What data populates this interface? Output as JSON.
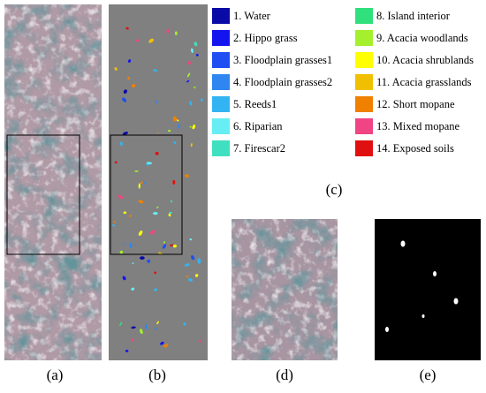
{
  "legend": [
    {
      "label": "1. Water",
      "color": "#0a0aa6"
    },
    {
      "label": "2. Hippo grass",
      "color": "#1414ee"
    },
    {
      "label": "3. Floodplain grasses1",
      "color": "#1f4ff2"
    },
    {
      "label": "4. Floodplain grasses2",
      "color": "#2f86f0"
    },
    {
      "label": "5. Reeds1",
      "color": "#33b4f2"
    },
    {
      "label": "6. Riparian",
      "color": "#66eef4"
    },
    {
      "label": "7. Firescar2",
      "color": "#3fe0c0"
    },
    {
      "label": "8. Island interior",
      "color": "#2fe07c"
    },
    {
      "label": "9. Acacia woodlands",
      "color": "#a4f02c"
    },
    {
      "label": "10. Acacia shrublands",
      "color": "#ffff00"
    },
    {
      "label": "11. Acacia grasslands",
      "color": "#f0c000"
    },
    {
      "label": "12. Short mopane",
      "color": "#f08000"
    },
    {
      "label": "13. Mixed mopane",
      "color": "#f04484"
    },
    {
      "label": "14. Exposed soils",
      "color": "#e01010"
    }
  ],
  "panel_labels": [
    "(a)",
    "(b)",
    "(c)",
    "(d)",
    "(e)"
  ]
}
